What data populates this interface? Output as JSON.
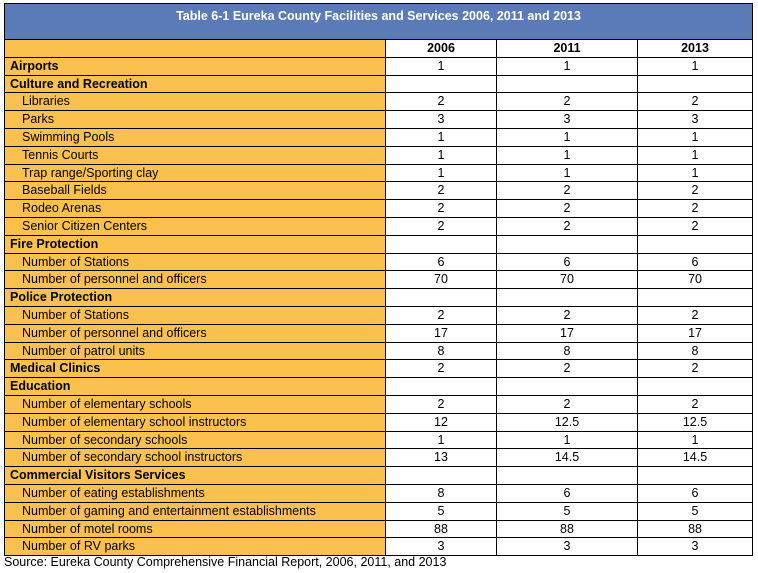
{
  "table": {
    "title": "Table 6-1 Eureka County Facilities and Services 2006, 2011 and 2013",
    "columns": [
      "2006",
      "2011",
      "2013"
    ],
    "rows": [
      {
        "label": "Airports",
        "kind": "cat",
        "values": [
          "1",
          "1",
          "1"
        ]
      },
      {
        "label": "Culture and Recreation",
        "kind": "cat",
        "values": [
          "",
          "",
          ""
        ]
      },
      {
        "label": "Libraries",
        "kind": "sub",
        "values": [
          "2",
          "2",
          "2"
        ]
      },
      {
        "label": "Parks",
        "kind": "sub",
        "values": [
          "3",
          "3",
          "3"
        ]
      },
      {
        "label": "Swimming Pools",
        "kind": "sub",
        "values": [
          "1",
          "1",
          "1"
        ]
      },
      {
        "label": "Tennis Courts",
        "kind": "sub",
        "values": [
          "1",
          "1",
          "1"
        ]
      },
      {
        "label": "Trap range/Sporting clay",
        "kind": "sub",
        "values": [
          "1",
          "1",
          "1"
        ]
      },
      {
        "label": "Baseball Fields",
        "kind": "sub",
        "values": [
          "2",
          "2",
          "2"
        ]
      },
      {
        "label": "Rodeo Arenas",
        "kind": "sub",
        "values": [
          "2",
          "2",
          "2"
        ]
      },
      {
        "label": "Senior Citizen Centers",
        "kind": "sub",
        "values": [
          "2",
          "2",
          "2"
        ]
      },
      {
        "label": "Fire Protection",
        "kind": "cat",
        "values": [
          "",
          "",
          ""
        ]
      },
      {
        "label": "Number of Stations",
        "kind": "sub",
        "values": [
          "6",
          "6",
          "6"
        ]
      },
      {
        "label": "Number of personnel and officers",
        "kind": "sub",
        "values": [
          "70",
          "70",
          "70"
        ]
      },
      {
        "label": "Police Protection",
        "kind": "cat",
        "values": [
          "",
          "",
          ""
        ]
      },
      {
        "label": "Number of Stations",
        "kind": "sub",
        "values": [
          "2",
          "2",
          "2"
        ]
      },
      {
        "label": "Number of personnel and officers",
        "kind": "sub",
        "values": [
          "17",
          "17",
          "17"
        ]
      },
      {
        "label": "Number of patrol units",
        "kind": "sub",
        "values": [
          "8",
          "8",
          "8"
        ]
      },
      {
        "label": "Medical Clinics",
        "kind": "cat",
        "values": [
          "2",
          "2",
          "2"
        ]
      },
      {
        "label": "Education",
        "kind": "cat",
        "values": [
          "",
          "",
          ""
        ]
      },
      {
        "label": "Number of elementary schools",
        "kind": "sub",
        "values": [
          "2",
          "2",
          "2"
        ]
      },
      {
        "label": "Number of elementary school instructors",
        "kind": "sub",
        "values": [
          "12",
          "12.5",
          "12.5"
        ]
      },
      {
        "label": "Number of secondary schools",
        "kind": "sub",
        "values": [
          "1",
          "1",
          "1"
        ]
      },
      {
        "label": "Number of secondary school instructors",
        "kind": "sub",
        "values": [
          "13",
          "14.5",
          "14.5"
        ]
      },
      {
        "label": "Commercial Visitors Services",
        "kind": "cat",
        "values": [
          "",
          "",
          ""
        ]
      },
      {
        "label": "Number of eating establishments",
        "kind": "sub",
        "values": [
          "8",
          "6",
          "6"
        ]
      },
      {
        "label": "Number of gaming and entertainment establishments",
        "kind": "sub",
        "values": [
          "5",
          "5",
          "5"
        ]
      },
      {
        "label": "Number of motel rooms",
        "kind": "sub",
        "values": [
          "88",
          "88",
          "88"
        ]
      },
      {
        "label": "Number of RV parks",
        "kind": "sub",
        "values": [
          "3",
          "3",
          "3"
        ]
      }
    ]
  },
  "source": "Source: Eureka County Comprehensive Financial Report, 2006, 2011, and 2013",
  "colors": {
    "header_bg": "#5b7ab8",
    "label_bg": "#fbc14f",
    "value_bg": "#ffffff"
  }
}
